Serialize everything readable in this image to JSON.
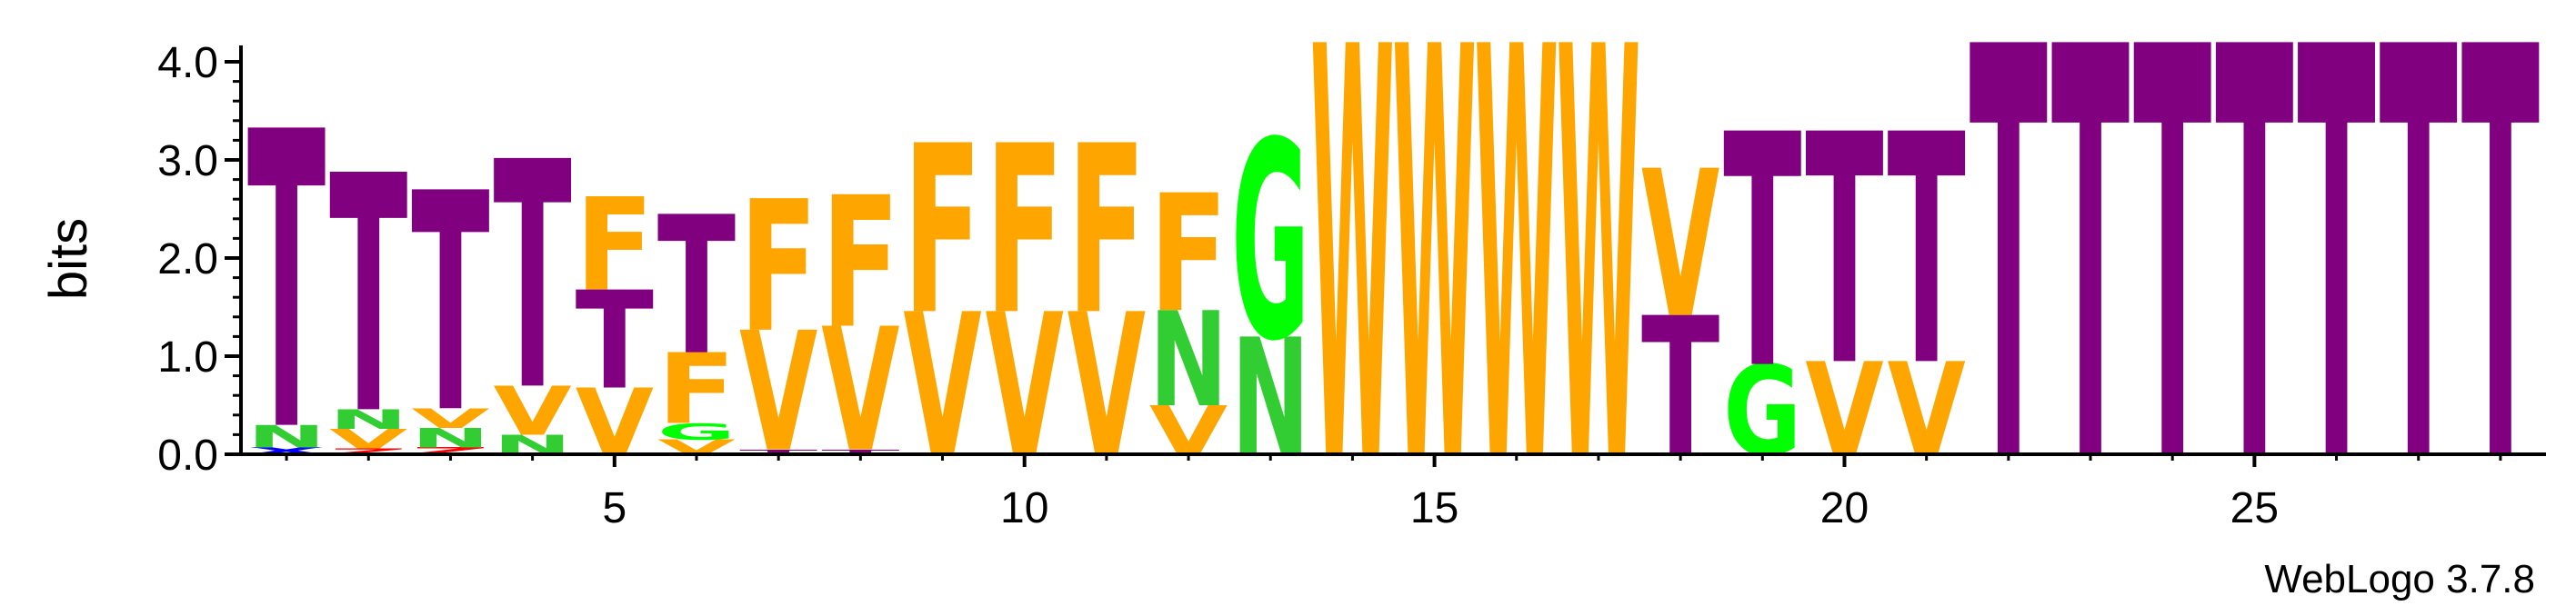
{
  "chart_data": {
    "type": "sequence-logo",
    "ylabel": "bits",
    "xlabel": "",
    "ylim": [
      0,
      4.0
    ],
    "yticks": [
      "0.0",
      "1.0",
      "2.0",
      "3.0",
      "4.0"
    ],
    "xticks": [
      "5",
      "10",
      "15",
      "20",
      "25"
    ],
    "xtick_positions": [
      5,
      10,
      15,
      20,
      25
    ],
    "footer": "WebLogo 3.7.8",
    "colors": {
      "T": "#800080",
      "F": "#FFA500",
      "V": "#FFA500",
      "W": "#FFA500",
      "G": "#00FF00",
      "N": "#32CD32",
      "X": "#0000FF",
      "Z": "#FF0000"
    },
    "positions": [
      {
        "pos": 1,
        "stack": [
          {
            "l": "X",
            "h": 0.07
          },
          {
            "l": "N",
            "h": 0.23
          },
          {
            "l": "T",
            "h": 3.03
          }
        ]
      },
      {
        "pos": 2,
        "stack": [
          {
            "l": "Z",
            "h": 0.06
          },
          {
            "l": "V",
            "h": 0.2
          },
          {
            "l": "N",
            "h": 0.2
          },
          {
            "l": "T",
            "h": 2.42
          }
        ]
      },
      {
        "pos": 3,
        "stack": [
          {
            "l": "Z",
            "h": 0.07
          },
          {
            "l": "N",
            "h": 0.2
          },
          {
            "l": "V",
            "h": 0.2
          },
          {
            "l": "T",
            "h": 2.23
          }
        ]
      },
      {
        "pos": 4,
        "stack": [
          {
            "l": "N",
            "h": 0.2
          },
          {
            "l": "V",
            "h": 0.5
          },
          {
            "l": "T",
            "h": 2.32
          }
        ]
      },
      {
        "pos": 5,
        "stack": [
          {
            "l": "V",
            "h": 0.68
          },
          {
            "l": "T",
            "h": 1.0
          },
          {
            "l": "F",
            "h": 0.95
          }
        ]
      },
      {
        "pos": 6,
        "stack": [
          {
            "l": "V",
            "h": 0.15
          },
          {
            "l": "G",
            "h": 0.17
          },
          {
            "l": "F",
            "h": 0.72
          },
          {
            "l": "T",
            "h": 1.41
          }
        ]
      },
      {
        "pos": 7,
        "stack": [
          {
            "l": "T",
            "h": 0.05
          },
          {
            "l": "V",
            "h": 1.22
          },
          {
            "l": "F",
            "h": 1.34
          }
        ]
      },
      {
        "pos": 8,
        "stack": [
          {
            "l": "T",
            "h": 0.05
          },
          {
            "l": "V",
            "h": 1.26
          },
          {
            "l": "F",
            "h": 1.34
          }
        ]
      },
      {
        "pos": 9,
        "stack": [
          {
            "l": "V",
            "h": 1.46
          },
          {
            "l": "F",
            "h": 1.72
          }
        ]
      },
      {
        "pos": 10,
        "stack": [
          {
            "l": "V",
            "h": 1.46
          },
          {
            "l": "F",
            "h": 1.72
          }
        ]
      },
      {
        "pos": 11,
        "stack": [
          {
            "l": "V",
            "h": 1.46
          },
          {
            "l": "F",
            "h": 1.72
          }
        ]
      },
      {
        "pos": 12,
        "stack": [
          {
            "l": "V",
            "h": 0.5
          },
          {
            "l": "N",
            "h": 0.97
          },
          {
            "l": "F",
            "h": 1.2
          }
        ]
      },
      {
        "pos": 13,
        "stack": [
          {
            "l": "N",
            "h": 1.2
          },
          {
            "l": "G",
            "h": 2.02
          }
        ]
      },
      {
        "pos": 14,
        "stack": [
          {
            "l": "W",
            "h": 4.2
          }
        ]
      },
      {
        "pos": 15,
        "stack": [
          {
            "l": "W",
            "h": 4.2
          }
        ]
      },
      {
        "pos": 16,
        "stack": [
          {
            "l": "W",
            "h": 4.2
          }
        ]
      },
      {
        "pos": 17,
        "stack": [
          {
            "l": "W",
            "h": 4.2
          }
        ]
      },
      {
        "pos": 18,
        "stack": [
          {
            "l": "T",
            "h": 1.42
          },
          {
            "l": "V",
            "h": 1.5
          }
        ]
      },
      {
        "pos": 19,
        "stack": [
          {
            "l": "G",
            "h": 0.92
          },
          {
            "l": "T",
            "h": 2.38
          }
        ]
      },
      {
        "pos": 20,
        "stack": [
          {
            "l": "V",
            "h": 0.95
          },
          {
            "l": "T",
            "h": 2.35
          }
        ]
      },
      {
        "pos": 21,
        "stack": [
          {
            "l": "V",
            "h": 0.95
          },
          {
            "l": "T",
            "h": 2.35
          }
        ]
      },
      {
        "pos": 22,
        "stack": [
          {
            "l": "T",
            "h": 4.2
          }
        ]
      },
      {
        "pos": 23,
        "stack": [
          {
            "l": "T",
            "h": 4.2
          }
        ]
      },
      {
        "pos": 24,
        "stack": [
          {
            "l": "T",
            "h": 4.2
          }
        ]
      },
      {
        "pos": 25,
        "stack": [
          {
            "l": "T",
            "h": 4.2
          }
        ]
      },
      {
        "pos": 26,
        "stack": [
          {
            "l": "T",
            "h": 4.2
          }
        ]
      },
      {
        "pos": 27,
        "stack": [
          {
            "l": "T",
            "h": 4.2
          }
        ]
      },
      {
        "pos": 28,
        "stack": [
          {
            "l": "T",
            "h": 4.2
          }
        ]
      }
    ]
  }
}
